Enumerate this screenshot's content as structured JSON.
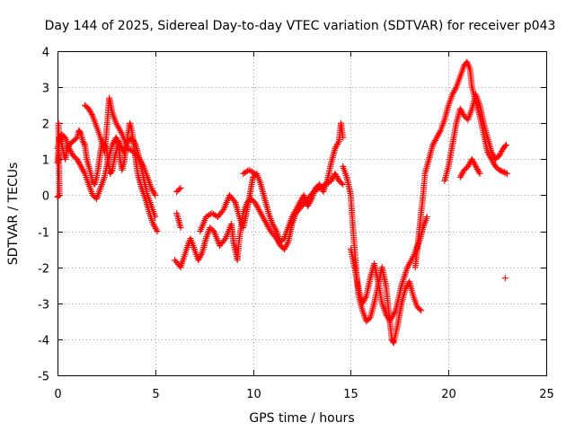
{
  "chart_data": {
    "type": "scatter",
    "title": "Day 144 of 2025, Sidereal Day-to-day VTEC variation (SDTVAR) for receiver p043",
    "xlabel": "GPS time / hours",
    "ylabel": "SDTVAR / TECUs",
    "xlim": [
      0,
      25
    ],
    "ylim": [
      -5,
      4
    ],
    "xticks": [
      0,
      5,
      10,
      15,
      20,
      25
    ],
    "yticks": [
      -5,
      -4,
      -3,
      -2,
      -1,
      0,
      1,
      2,
      3,
      4
    ],
    "xtick_labels": [
      "0",
      "5",
      "10",
      "15",
      "20",
      "25"
    ],
    "ytick_labels": [
      "-5",
      "-4",
      "-3",
      "-2",
      "-1",
      "0",
      "1",
      "2",
      "3",
      "4"
    ],
    "grid": true,
    "marker": "+",
    "series": [
      {
        "name": "SDTVAR",
        "color": "#ff0000",
        "segments": [
          [
            [
              0.0,
              0.9
            ],
            [
              0.05,
              1.2
            ],
            [
              0.1,
              1.6
            ],
            [
              0.2,
              1.5
            ],
            [
              0.3,
              1.2
            ],
            [
              0.4,
              1.0
            ],
            [
              0.5,
              1.3
            ],
            [
              0.6,
              1.4
            ],
            [
              0.8,
              1.5
            ],
            [
              1.0,
              1.6
            ],
            [
              1.1,
              1.8
            ],
            [
              1.2,
              1.7
            ],
            [
              1.3,
              1.5
            ],
            [
              1.4,
              1.4
            ],
            [
              1.5,
              1.0
            ],
            [
              1.6,
              0.8
            ],
            [
              1.7,
              0.6
            ],
            [
              1.8,
              0.4
            ],
            [
              1.9,
              0.3
            ],
            [
              2.0,
              0.5
            ],
            [
              2.1,
              0.8
            ],
            [
              2.2,
              1.2
            ],
            [
              2.3,
              1.5
            ],
            [
              2.5,
              1.3
            ],
            [
              2.6,
              0.9
            ],
            [
              2.7,
              0.6
            ],
            [
              2.8,
              0.7
            ],
            [
              2.9,
              1.0
            ],
            [
              3.0,
              1.2
            ],
            [
              3.1,
              1.5
            ],
            [
              3.2,
              1.0
            ],
            [
              3.3,
              0.7
            ],
            [
              3.4,
              0.9
            ],
            [
              3.5,
              1.3
            ],
            [
              3.6,
              1.7
            ],
            [
              3.7,
              2.0
            ],
            [
              3.8,
              1.8
            ],
            [
              3.9,
              1.4
            ],
            [
              4.0,
              1.0
            ],
            [
              4.1,
              0.6
            ],
            [
              4.2,
              0.4
            ],
            [
              4.3,
              0.2
            ],
            [
              4.5,
              -0.1
            ],
            [
              4.7,
              -0.5
            ],
            [
              4.9,
              -0.8
            ],
            [
              5.1,
              -1.0
            ]
          ],
          [
            [
              0.0,
              1.3
            ],
            [
              0.2,
              1.7
            ],
            [
              0.4,
              1.6
            ],
            [
              0.6,
              1.3
            ],
            [
              0.8,
              1.1
            ],
            [
              1.0,
              1.0
            ],
            [
              1.2,
              0.8
            ],
            [
              1.4,
              0.6
            ],
            [
              1.6,
              0.3
            ],
            [
              1.8,
              0.0
            ],
            [
              2.0,
              -0.1
            ],
            [
              2.2,
              0.2
            ],
            [
              2.4,
              0.5
            ],
            [
              2.6,
              1.0
            ],
            [
              2.8,
              1.4
            ],
            [
              3.0,
              1.6
            ],
            [
              3.2,
              1.4
            ],
            [
              3.4,
              1.2
            ],
            [
              3.6,
              1.5
            ],
            [
              3.8,
              1.6
            ],
            [
              4.0,
              1.4
            ],
            [
              4.2,
              1.0
            ],
            [
              4.4,
              0.5
            ],
            [
              4.6,
              0.0
            ],
            [
              4.8,
              -0.3
            ],
            [
              5.0,
              -0.6
            ]
          ],
          [
            [
              1.4,
              2.5
            ],
            [
              1.6,
              2.4
            ],
            [
              1.8,
              2.2
            ],
            [
              2.0,
              1.9
            ],
            [
              2.2,
              1.6
            ],
            [
              2.4,
              1.2
            ],
            [
              2.5,
              1.7
            ],
            [
              2.6,
              2.4
            ],
            [
              2.65,
              2.7
            ],
            [
              2.8,
              2.3
            ],
            [
              3.0,
              2.0
            ],
            [
              3.3,
              1.7
            ],
            [
              3.6,
              1.3
            ],
            [
              3.9,
              1.2
            ],
            [
              4.2,
              1.0
            ],
            [
              4.4,
              0.8
            ],
            [
              4.6,
              0.5
            ],
            [
              4.8,
              0.2
            ],
            [
              5.0,
              0.0
            ]
          ],
          [
            [
              0.0,
              -0.05
            ],
            [
              0.1,
              0.0
            ],
            [
              0.05,
              2.0
            ]
          ],
          [
            [
              6.1,
              0.1
            ],
            [
              6.3,
              0.2
            ]
          ],
          [
            [
              6.1,
              -0.5
            ],
            [
              6.3,
              -0.9
            ]
          ],
          [
            [
              6.0,
              -1.8
            ],
            [
              6.3,
              -2.0
            ],
            [
              6.6,
              -1.5
            ],
            [
              6.8,
              -1.2
            ],
            [
              7.0,
              -1.5
            ],
            [
              7.2,
              -1.8
            ],
            [
              7.4,
              -1.6
            ],
            [
              7.6,
              -1.2
            ],
            [
              7.8,
              -0.9
            ],
            [
              8.0,
              -1.0
            ],
            [
              8.3,
              -1.4
            ],
            [
              8.6,
              -1.2
            ],
            [
              8.9,
              -0.8
            ],
            [
              9.0,
              -1.3
            ],
            [
              9.2,
              -1.8
            ],
            [
              9.3,
              -1.2
            ],
            [
              9.5,
              -0.5
            ],
            [
              9.7,
              -0.2
            ],
            [
              9.9,
              -0.1
            ],
            [
              10.1,
              -0.2
            ],
            [
              10.3,
              -0.4
            ],
            [
              10.6,
              -0.7
            ],
            [
              10.9,
              -1.0
            ],
            [
              11.2,
              -1.2
            ],
            [
              11.4,
              -1.4
            ],
            [
              11.6,
              -1.5
            ],
            [
              11.8,
              -1.3
            ],
            [
              12.0,
              -0.8
            ],
            [
              12.2,
              -0.5
            ],
            [
              12.5,
              -0.3
            ],
            [
              12.8,
              -0.1
            ],
            [
              13.1,
              0.1
            ],
            [
              13.4,
              0.2
            ],
            [
              13.7,
              0.3
            ],
            [
              14.0,
              0.4
            ],
            [
              14.2,
              0.6
            ],
            [
              14.4,
              0.4
            ],
            [
              14.6,
              0.3
            ]
          ],
          [
            [
              7.3,
              -1.0
            ],
            [
              7.6,
              -0.6
            ],
            [
              7.9,
              -0.5
            ],
            [
              8.2,
              -0.6
            ],
            [
              8.5,
              -0.4
            ],
            [
              8.8,
              0.0
            ],
            [
              9.1,
              -0.2
            ],
            [
              9.3,
              -0.6
            ],
            [
              9.5,
              -0.9
            ],
            [
              9.7,
              -0.4
            ],
            [
              9.9,
              0.2
            ],
            [
              10.0,
              0.5
            ],
            [
              10.2,
              0.6
            ],
            [
              10.4,
              0.3
            ],
            [
              10.6,
              -0.1
            ],
            [
              10.8,
              -0.5
            ],
            [
              11.0,
              -0.8
            ],
            [
              11.2,
              -1.0
            ],
            [
              11.4,
              -1.3
            ],
            [
              11.6,
              -1.2
            ],
            [
              11.8,
              -0.9
            ],
            [
              12.0,
              -0.6
            ],
            [
              12.2,
              -0.4
            ],
            [
              12.4,
              -0.2
            ],
            [
              12.6,
              0.0
            ],
            [
              12.8,
              -0.3
            ],
            [
              13.0,
              -0.1
            ],
            [
              13.2,
              0.2
            ],
            [
              13.4,
              0.3
            ],
            [
              13.6,
              0.1
            ],
            [
              13.8,
              0.4
            ],
            [
              14.0,
              0.9
            ],
            [
              14.2,
              1.3
            ],
            [
              14.4,
              1.5
            ],
            [
              14.5,
              2.0
            ],
            [
              14.6,
              1.6
            ]
          ],
          [
            [
              9.5,
              0.6
            ],
            [
              9.8,
              0.7
            ],
            [
              10.1,
              0.6
            ]
          ],
          [
            [
              14.6,
              0.8
            ],
            [
              14.8,
              0.5
            ],
            [
              15.0,
              0.0
            ],
            [
              15.1,
              -0.8
            ],
            [
              15.2,
              -1.5
            ],
            [
              15.3,
              -2.2
            ],
            [
              15.4,
              -2.8
            ],
            [
              15.6,
              -3.2
            ],
            [
              15.8,
              -3.5
            ],
            [
              16.0,
              -3.4
            ],
            [
              16.2,
              -3.0
            ],
            [
              16.4,
              -2.5
            ],
            [
              16.6,
              -2.0
            ],
            [
              16.8,
              -2.5
            ],
            [
              17.0,
              -3.5
            ],
            [
              17.1,
              -4.0
            ],
            [
              17.2,
              -4.1
            ],
            [
              17.4,
              -3.6
            ],
            [
              17.6,
              -3.0
            ],
            [
              17.8,
              -2.6
            ],
            [
              18.0,
              -2.4
            ],
            [
              18.2,
              -2.8
            ],
            [
              18.4,
              -3.1
            ],
            [
              18.6,
              -3.2
            ]
          ],
          [
            [
              15.0,
              -1.5
            ],
            [
              15.2,
              -2.0
            ],
            [
              15.4,
              -2.6
            ],
            [
              15.6,
              -3.0
            ],
            [
              15.8,
              -2.8
            ],
            [
              16.0,
              -2.3
            ],
            [
              16.2,
              -1.9
            ],
            [
              16.4,
              -2.4
            ],
            [
              16.6,
              -3.0
            ],
            [
              16.8,
              -3.3
            ],
            [
              17.0,
              -3.5
            ],
            [
              17.3,
              -3.2
            ],
            [
              17.6,
              -2.5
            ],
            [
              17.9,
              -2.0
            ],
            [
              18.2,
              -1.7
            ],
            [
              18.5,
              -1.3
            ],
            [
              18.7,
              -0.9
            ],
            [
              18.9,
              -0.6
            ]
          ],
          [
            [
              18.3,
              -2.0
            ],
            [
              18.5,
              -1.0
            ],
            [
              18.7,
              0.0
            ],
            [
              18.8,
              0.6
            ],
            [
              19.0,
              1.0
            ],
            [
              19.2,
              1.4
            ],
            [
              19.4,
              1.6
            ],
            [
              19.6,
              1.8
            ],
            [
              19.8,
              2.1
            ],
            [
              20.0,
              2.5
            ],
            [
              20.2,
              2.8
            ],
            [
              20.4,
              3.0
            ],
            [
              20.6,
              3.3
            ],
            [
              20.8,
              3.6
            ],
            [
              20.95,
              3.7
            ],
            [
              21.1,
              3.5
            ],
            [
              21.2,
              3.0
            ],
            [
              21.4,
              2.6
            ],
            [
              21.6,
              2.2
            ],
            [
              21.8,
              1.7
            ],
            [
              22.0,
              1.2
            ],
            [
              22.2,
              1.0
            ],
            [
              22.4,
              0.8
            ],
            [
              22.6,
              0.7
            ],
            [
              22.8,
              0.65
            ],
            [
              23.0,
              0.6
            ]
          ],
          [
            [
              19.8,
              0.4
            ],
            [
              20.0,
              0.8
            ],
            [
              20.2,
              1.4
            ],
            [
              20.4,
              2.0
            ],
            [
              20.6,
              2.4
            ],
            [
              20.8,
              2.2
            ],
            [
              21.0,
              2.1
            ],
            [
              21.2,
              2.4
            ],
            [
              21.4,
              2.8
            ],
            [
              21.6,
              2.5
            ],
            [
              21.8,
              2.0
            ],
            [
              22.0,
              1.6
            ],
            [
              22.2,
              1.2
            ],
            [
              22.4,
              1.0
            ],
            [
              22.6,
              1.1
            ],
            [
              22.8,
              1.3
            ],
            [
              22.95,
              1.4
            ]
          ],
          [
            [
              20.6,
              0.5
            ],
            [
              20.8,
              0.7
            ],
            [
              21.0,
              0.8
            ],
            [
              21.2,
              1.0
            ],
            [
              21.4,
              0.8
            ],
            [
              21.6,
              0.6
            ]
          ],
          [
            [
              22.9,
              -2.3
            ]
          ]
        ]
      }
    ]
  }
}
